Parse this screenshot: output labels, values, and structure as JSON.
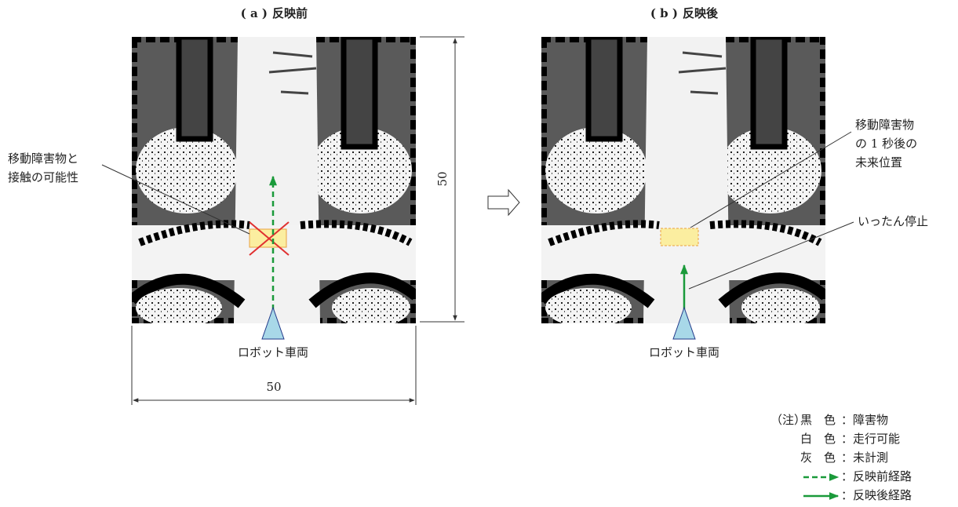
{
  "panels": [
    {
      "label": "( a )",
      "title": "反映前",
      "vehicle": "ロボット車両",
      "annotation": [
        "移動障害物と",
        "接触の可能性"
      ]
    },
    {
      "label": "( b )",
      "title": "反映後",
      "vehicle": "ロボット車両",
      "annotation": [
        "移動障害物",
        "の 1 秒後の",
        "未来位置"
      ],
      "stop": "いったん停止"
    }
  ],
  "dimensions": {
    "height": "50",
    "width": "50"
  },
  "note": {
    "label": "（注）",
    "items": [
      {
        "key": "黒　色",
        "text": "：障害物"
      },
      {
        "key": "白　色",
        "text": "：走行可能"
      },
      {
        "key": "灰　色",
        "text": "：未計測"
      },
      {
        "text": "：反映前経路"
      },
      {
        "text": "：反映後経路"
      }
    ]
  }
}
